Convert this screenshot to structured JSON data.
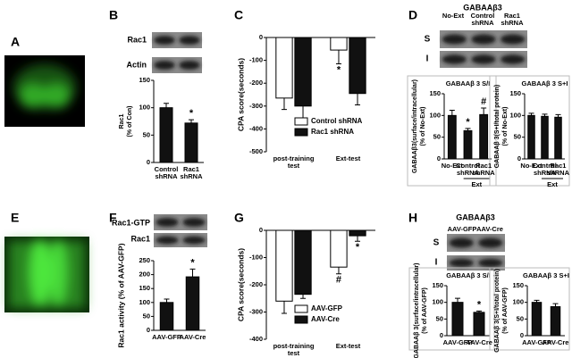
{
  "panels": [
    "A",
    "B",
    "C",
    "D",
    "E",
    "F",
    "G",
    "H"
  ],
  "blots": {
    "B": {
      "rows": [
        "Rac1",
        "Actin"
      ]
    },
    "D": {
      "title": "GABAAβ3",
      "columns": [
        "No-Ext",
        "Control shRNA",
        "Rac1 shRNA"
      ],
      "rows": [
        "S",
        "I"
      ]
    },
    "F": {
      "rows": [
        "Rac1-GTP",
        "Rac1"
      ]
    },
    "H": {
      "title": "GABAAβ3",
      "columns": [
        "AAV-GFP",
        "AAV-Cre"
      ],
      "rows": [
        "S",
        "I"
      ]
    }
  },
  "chart_data": [
    {
      "type": "bar",
      "ylabel": [
        "Rac1",
        "(% of Con)"
      ],
      "categories": [
        "Control shRNA",
        "Rac1 shRNA"
      ],
      "values": [
        100,
        72
      ],
      "errors": [
        8,
        6
      ],
      "markers": [
        null,
        "*"
      ],
      "color": "#111111",
      "ylim": [
        0,
        150
      ],
      "yticks": [
        0,
        50,
        100,
        150
      ]
    },
    {
      "type": "bar",
      "ylabel": "CPA score(seconds)",
      "categories": [
        "post-training test",
        "Ext-test"
      ],
      "series": [
        {
          "name": "Control shRNA",
          "color": "#ffffff",
          "values": [
            -265,
            -55
          ],
          "errors": [
            50,
            60
          ],
          "markers": [
            null,
            "*"
          ]
        },
        {
          "name": "Rac1 shRNA",
          "color": "#111111",
          "values": [
            -300,
            -245
          ],
          "errors": [
            60,
            50
          ]
        }
      ],
      "ylim": [
        -500,
        0
      ],
      "yticks": [
        -500,
        -400,
        -300,
        -200,
        -100,
        0
      ]
    },
    {
      "type": "bar",
      "title": "GABAAβ 3 S/I",
      "ylabel": [
        "GABAAβ3(surface/intracellular)",
        "(% of No-Ext)"
      ],
      "categories": [
        "No-Ext",
        "Control shRNA",
        "Rac1 shRNA"
      ],
      "group_label": "Ext",
      "values": [
        100,
        65,
        102
      ],
      "errors": [
        12,
        5,
        15
      ],
      "markers": [
        null,
        "*",
        "#"
      ],
      "color": "#111111",
      "ylim": [
        0,
        150
      ],
      "yticks": [
        0,
        50,
        100,
        150
      ]
    },
    {
      "type": "bar",
      "title": "GABAAβ 3 S+I",
      "ylabel": [
        "GABAAβ 3(S+I/total protein)",
        "(% of No-Ext)"
      ],
      "categories": [
        "No-Ext",
        "Control shRNA",
        "Rac1 shRNA"
      ],
      "group_label": "Ext",
      "values": [
        100,
        98,
        96
      ],
      "errors": [
        5,
        5,
        6
      ],
      "color": "#111111",
      "ylim": [
        0,
        150
      ],
      "yticks": [
        0,
        50,
        100,
        150
      ]
    },
    {
      "type": "bar",
      "ylabel": "Rac1 activity (% of AAV-GFP)",
      "categories": [
        "AAV-GFP",
        "AAV-Cre"
      ],
      "values": [
        100,
        192
      ],
      "errors": [
        12,
        28
      ],
      "markers": [
        null,
        "*"
      ],
      "color": "#111111",
      "ylim": [
        0,
        250
      ],
      "yticks": [
        0,
        50,
        100,
        150,
        200,
        250
      ]
    },
    {
      "type": "bar",
      "ylabel": "CPA score(seconds)",
      "categories": [
        "post-training test",
        "Ext-test"
      ],
      "series": [
        {
          "name": "AAV-GFP",
          "color": "#ffffff",
          "values": [
            -260,
            -135
          ],
          "errors": [
            45,
            25
          ],
          "markers": [
            null,
            "#"
          ]
        },
        {
          "name": "AAV-Cre",
          "color": "#111111",
          "values": [
            -235,
            -20
          ],
          "errors": [
            15,
            20
          ],
          "markers": [
            null,
            "*"
          ]
        }
      ],
      "ylim": [
        -400,
        0
      ],
      "yticks": [
        -400,
        -300,
        -200,
        -100,
        0
      ]
    },
    {
      "type": "bar",
      "title": "GABAAβ 3 S/I",
      "ylabel": [
        "GABAAβ 3(surface/intracellular)",
        "(% of AAV-GFP)"
      ],
      "categories": [
        "AAV-GFP",
        "AAV-Cre"
      ],
      "values": [
        100,
        70
      ],
      "errors": [
        12,
        4
      ],
      "markers": [
        null,
        "*"
      ],
      "color": "#111111",
      "ylim": [
        0,
        150
      ],
      "yticks": [
        0,
        50,
        100,
        150
      ]
    },
    {
      "type": "bar",
      "title": "GABAAβ 3 S+I",
      "ylabel": [
        "GABAAβ 3(S+I/total protein)",
        "(% of AAV-GFP)"
      ],
      "categories": [
        "AAV-GFP",
        "AAV-Cre"
      ],
      "values": [
        100,
        87
      ],
      "errors": [
        6,
        9
      ],
      "color": "#111111",
      "ylim": [
        0,
        150
      ],
      "yticks": [
        0,
        50,
        100,
        150
      ]
    }
  ]
}
